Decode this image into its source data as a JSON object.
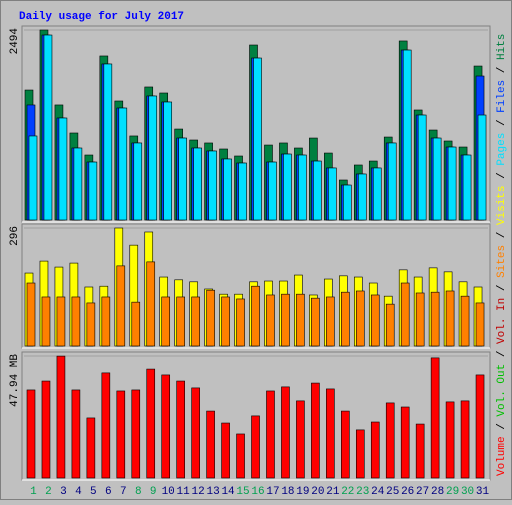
{
  "legend_separator": " / ",
  "chart_data": [
    {
      "type": "bar",
      "title": "Daily usage for July 2017",
      "ylim": [
        0,
        2494
      ],
      "yticks": [
        2494
      ],
      "series": [
        {
          "name": "Hits",
          "color": "#008040",
          "values": [
            1706,
            2494,
            1510,
            1142,
            853,
            2153,
            1562,
            1103,
            1746,
            1667,
            1194,
            1050,
            1011,
            932,
            840,
            2297,
            984,
            1011,
            945,
            1076,
            879,
            525,
            722,
            774,
            1089,
            2350,
            1444,
            1181,
            1037,
            958,
            2021
          ]
        },
        {
          "name": "Files",
          "color": "#0040ff",
          "values": [
            1510,
            2428,
            1339,
            945,
            761,
            2048,
            1470,
            1011,
            1628,
            1549,
            1076,
            945,
            906,
            801,
            748,
            2126,
            761,
            866,
            853,
            774,
            683,
            459,
            604,
            683,
            1011,
            2231,
            1378,
            1076,
            958,
            853,
            1890
          ]
        },
        {
          "name": "Pages",
          "color": "#00e0ff",
          "values": [
            1103,
            2428,
            1339,
            945,
            761,
            2048,
            1470,
            1011,
            1628,
            1549,
            1076,
            945,
            906,
            801,
            748,
            2126,
            761,
            866,
            853,
            774,
            683,
            459,
            604,
            683,
            1011,
            2231,
            1378,
            1076,
            958,
            853,
            1378
          ]
        }
      ]
    },
    {
      "type": "bar",
      "ylim": [
        0,
        296
      ],
      "yticks": [
        296
      ],
      "series": [
        {
          "name": "Visits",
          "color": "#ffff00",
          "values": [
            183,
            213,
            198,
            208,
            148,
            150,
            296,
            253,
            286,
            173,
            166,
            161,
            143,
            130,
            130,
            161,
            163,
            163,
            178,
            128,
            168,
            176,
            173,
            158,
            125,
            191,
            173,
            196,
            186,
            161,
            148
          ]
        },
        {
          "name": "Sites",
          "color": "#ff8000",
          "values": [
            158,
            123,
            123,
            123,
            108,
            123,
            201,
            110,
            211,
            123,
            123,
            123,
            140,
            123,
            118,
            150,
            128,
            130,
            130,
            120,
            123,
            135,
            138,
            128,
            105,
            158,
            133,
            135,
            138,
            125,
            108
          ]
        }
      ]
    },
    {
      "type": "bar",
      "ylim": [
        0,
        47.94
      ],
      "yticks": [
        {
          "value": 47.94,
          "label": "47.94 MB"
        }
      ],
      "categories": [
        "1",
        "2",
        "3",
        "4",
        "5",
        "6",
        "7",
        "8",
        "9",
        "10",
        "11",
        "12",
        "13",
        "14",
        "15",
        "16",
        "17",
        "18",
        "19",
        "20",
        "21",
        "22",
        "23",
        "24",
        "25",
        "26",
        "27",
        "28",
        "29",
        "30",
        "31"
      ],
      "category_colors": [
        "#00a050",
        "#00a050",
        "#000080",
        "#000080",
        "#000080",
        "#000080",
        "#000080",
        "#00a050",
        "#00a050",
        "#000080",
        "#000080",
        "#000080",
        "#000080",
        "#000080",
        "#00a050",
        "#00a050",
        "#000080",
        "#000080",
        "#000080",
        "#000080",
        "#000080",
        "#00a050",
        "#00a050",
        "#000080",
        "#000080",
        "#000080",
        "#000080",
        "#000080",
        "#00a050",
        "#00a050",
        "#000080"
      ],
      "series": [
        {
          "name": "Volume",
          "color": "#ff0000",
          "values": [
            34.6,
            38.1,
            47.9,
            34.6,
            23.6,
            41.3,
            34.2,
            34.6,
            42.8,
            40.5,
            38.1,
            35.4,
            26.3,
            21.6,
            17.3,
            24.4,
            34.2,
            35.8,
            30.3,
            37.3,
            35.0,
            26.3,
            18.9,
            22.0,
            29.5,
            27.9,
            21.2,
            47.2,
            29.9,
            30.3,
            40.5
          ]
        }
      ],
      "extra_legend": [
        {
          "name": "Vol. In",
          "color": "#c00000"
        },
        {
          "name": "Vol. Out",
          "color": "#00c000"
        }
      ]
    }
  ]
}
